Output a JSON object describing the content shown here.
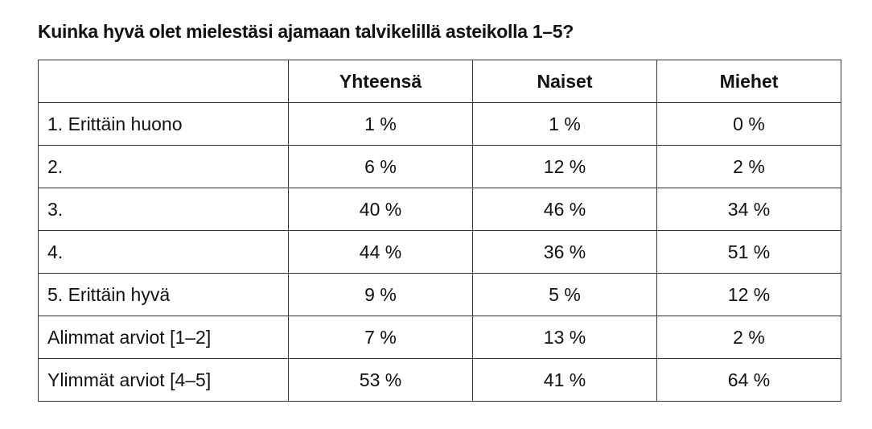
{
  "title": "Kuinka hyvä olet mielestäsi ajamaan talvikelillä asteikolla 1–5?",
  "table": {
    "columns": [
      "Yhteensä",
      "Naiset",
      "Miehet"
    ],
    "rows": [
      [
        "1. Erittäin huono",
        "1 %",
        "1 %",
        "0 %"
      ],
      [
        "2.",
        "6 %",
        "12 %",
        "2 %"
      ],
      [
        "3.",
        "40 %",
        "46 %",
        "34 %"
      ],
      [
        "4.",
        "44 %",
        "36 %",
        "51 %"
      ],
      [
        "5. Erittäin hyvä",
        "9 %",
        "5 %",
        "12 %"
      ],
      [
        "Alimmat arviot [1–2]",
        "7 %",
        "13 %",
        "2 %"
      ],
      [
        "Ylimmät arviot [4–5]",
        "53 %",
        "41 %",
        "64 %"
      ]
    ]
  }
}
